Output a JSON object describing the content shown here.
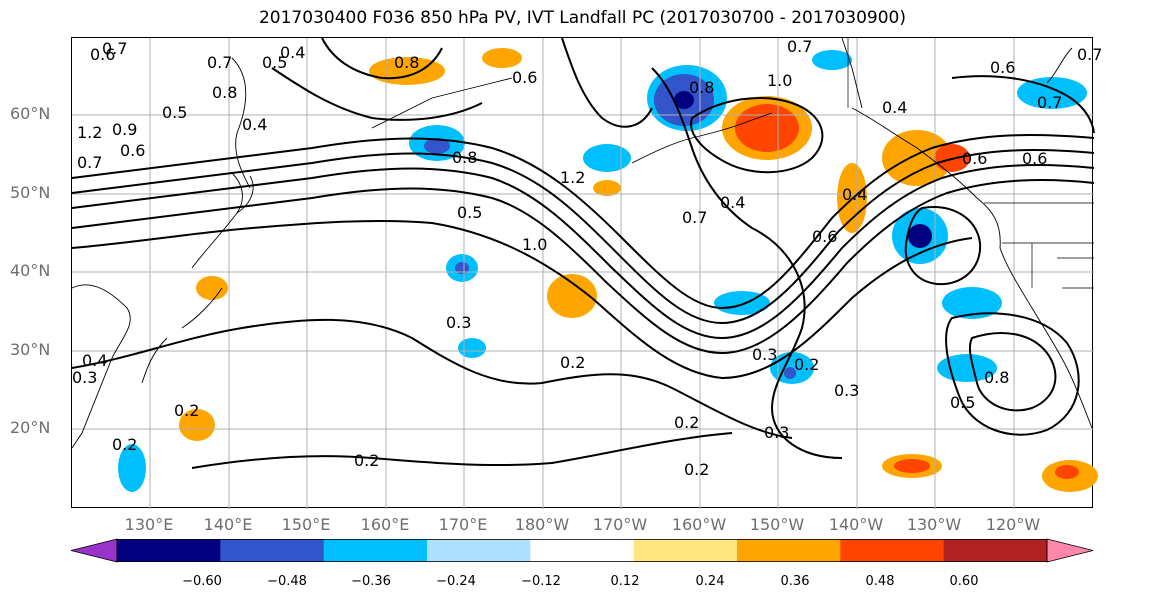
{
  "figure": {
    "title": "2017030400 F036 850 hPa PV, IVT Landfall PC (2017030700 - 2017030900)"
  },
  "axes": {
    "lat_labels": [
      "60°N",
      "50°N",
      "40°N",
      "30°N",
      "20°N"
    ],
    "lon_labels": [
      "130°E",
      "140°E",
      "150°E",
      "160°E",
      "170°E",
      "180°W",
      "170°W",
      "160°W",
      "150°W",
      "140°W",
      "130°W",
      "120°W"
    ]
  },
  "contour_labels": [
    "0.7",
    "0.6",
    "0.4",
    "0.5",
    "0.8",
    "0.8",
    "0.7",
    "0.6",
    "0.7",
    "1.0",
    "0.8",
    "0.5",
    "0.4",
    "0.4",
    "0.9",
    "0.6",
    "1.2",
    "0.7",
    "0.5",
    "0.8",
    "1.2",
    "1.0",
    "0.7",
    "0.4",
    "0.6",
    "0.4",
    "0.6",
    "0.3",
    "0.2",
    "0.4",
    "0.3",
    "0.2",
    "0.2",
    "0.2",
    "0.2",
    "0.3",
    "0.2",
    "0.3",
    "0.2",
    "0.3",
    "0.8",
    "0.5",
    "0.6",
    "0.7",
    "0.6",
    "0.7"
  ],
  "colorbar": {
    "ticks": [
      "−0.60",
      "−0.48",
      "−0.36",
      "−0.24",
      "−0.12",
      "0.12",
      "0.24",
      "0.36",
      "0.48",
      "0.60"
    ],
    "colors": [
      "#9933cc",
      "#000080",
      "#3355cc",
      "#00bfff",
      "#b0e0ff",
      "#ffffff",
      "#ffe680",
      "#ffa500",
      "#ff4500",
      "#b22222",
      "#ff88aa"
    ]
  }
}
